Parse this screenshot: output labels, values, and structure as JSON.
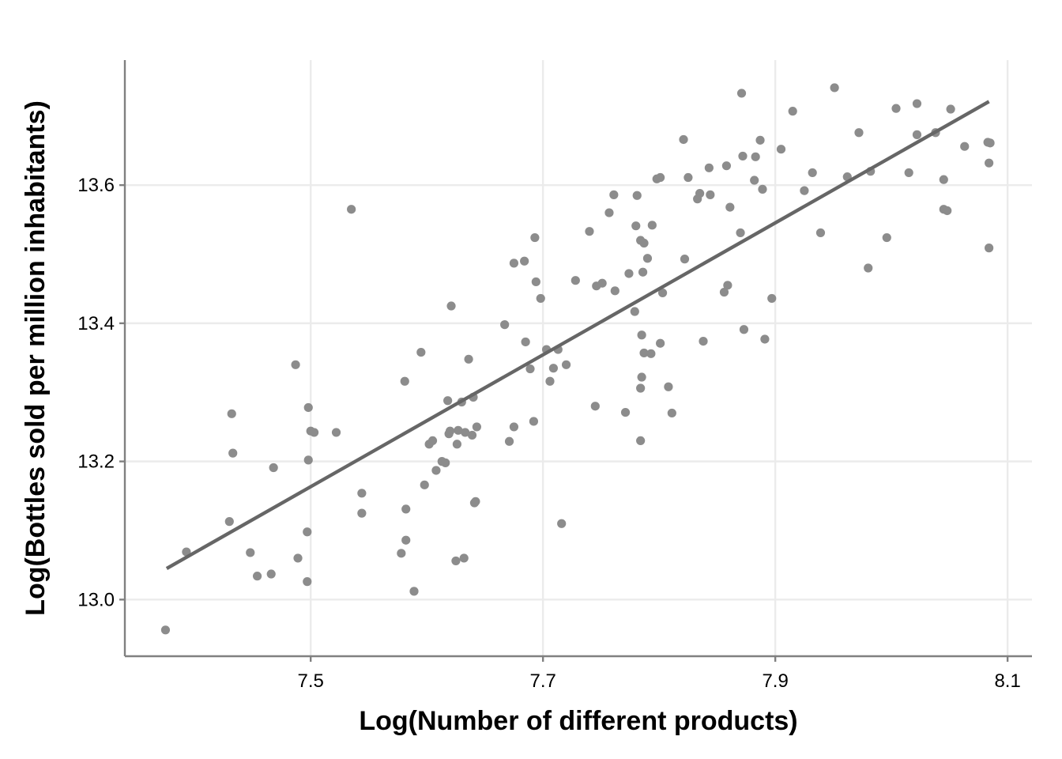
{
  "chart_data": {
    "type": "scatter",
    "title": "",
    "xlabel": "Log(Number of different products)",
    "ylabel": "Log(Bottles sold per million inhabitants)",
    "xlim": [
      7.34,
      8.121
    ],
    "ylim": [
      12.918,
      13.781
    ],
    "x_ticks": [
      7.5,
      7.7,
      7.9,
      8.1
    ],
    "x_tick_labels": [
      "7.5",
      "7.7",
      "7.9",
      "8.1"
    ],
    "y_ticks": [
      13.0,
      13.2,
      13.4,
      13.6
    ],
    "y_tick_labels": [
      "13.0",
      "13.2",
      "13.4",
      "13.6"
    ],
    "grid": true,
    "point_color": "#8c8c8c",
    "line_color": "#666666",
    "fit_line": {
      "x": [
        7.376,
        8.084
      ],
      "y": [
        13.045,
        13.721
      ]
    },
    "points": [
      [
        7.375,
        12.956
      ],
      [
        7.393,
        13.069
      ],
      [
        7.43,
        13.113
      ],
      [
        7.432,
        13.269
      ],
      [
        7.433,
        13.212
      ],
      [
        7.448,
        13.068
      ],
      [
        7.454,
        13.034
      ],
      [
        7.466,
        13.037
      ],
      [
        7.468,
        13.191
      ],
      [
        7.487,
        13.34
      ],
      [
        7.489,
        13.06
      ],
      [
        7.497,
        13.098
      ],
      [
        7.497,
        13.026
      ],
      [
        7.498,
        13.278
      ],
      [
        7.498,
        13.202
      ],
      [
        7.5,
        13.244
      ],
      [
        7.503,
        13.242
      ],
      [
        7.522,
        13.242
      ],
      [
        7.535,
        13.565
      ],
      [
        7.544,
        13.154
      ],
      [
        7.544,
        13.125
      ],
      [
        7.578,
        13.067
      ],
      [
        7.581,
        13.316
      ],
      [
        7.582,
        13.086
      ],
      [
        7.582,
        13.131
      ],
      [
        7.589,
        13.012
      ],
      [
        7.595,
        13.358
      ],
      [
        7.598,
        13.166
      ],
      [
        7.602,
        13.225
      ],
      [
        7.605,
        13.23
      ],
      [
        7.608,
        13.187
      ],
      [
        7.613,
        13.2
      ],
      [
        7.616,
        13.198
      ],
      [
        7.618,
        13.288
      ],
      [
        7.619,
        13.24
      ],
      [
        7.62,
        13.244
      ],
      [
        7.621,
        13.425
      ],
      [
        7.625,
        13.056
      ],
      [
        7.626,
        13.225
      ],
      [
        7.627,
        13.245
      ],
      [
        7.63,
        13.286
      ],
      [
        7.632,
        13.06
      ],
      [
        7.633,
        13.242
      ],
      [
        7.636,
        13.348
      ],
      [
        7.639,
        13.238
      ],
      [
        7.64,
        13.293
      ],
      [
        7.641,
        13.14
      ],
      [
        7.642,
        13.142
      ],
      [
        7.643,
        13.25
      ],
      [
        7.667,
        13.398
      ],
      [
        7.671,
        13.229
      ],
      [
        7.675,
        13.25
      ],
      [
        7.675,
        13.487
      ],
      [
        7.684,
        13.49
      ],
      [
        7.685,
        13.373
      ],
      [
        7.689,
        13.334
      ],
      [
        7.692,
        13.258
      ],
      [
        7.693,
        13.524
      ],
      [
        7.694,
        13.46
      ],
      [
        7.698,
        13.436
      ],
      [
        7.703,
        13.362
      ],
      [
        7.706,
        13.316
      ],
      [
        7.709,
        13.335
      ],
      [
        7.713,
        13.362
      ],
      [
        7.716,
        13.11
      ],
      [
        7.72,
        13.34
      ],
      [
        7.728,
        13.462
      ],
      [
        7.74,
        13.533
      ],
      [
        7.745,
        13.28
      ],
      [
        7.746,
        13.454
      ],
      [
        7.751,
        13.458
      ],
      [
        7.757,
        13.56
      ],
      [
        7.761,
        13.586
      ],
      [
        7.762,
        13.447
      ],
      [
        7.771,
        13.271
      ],
      [
        7.774,
        13.472
      ],
      [
        7.779,
        13.417
      ],
      [
        7.78,
        13.541
      ],
      [
        7.781,
        13.585
      ],
      [
        7.784,
        13.52
      ],
      [
        7.784,
        13.23
      ],
      [
        7.784,
        13.306
      ],
      [
        7.785,
        13.322
      ],
      [
        7.785,
        13.383
      ],
      [
        7.786,
        13.474
      ],
      [
        7.787,
        13.516
      ],
      [
        7.787,
        13.357
      ],
      [
        7.79,
        13.494
      ],
      [
        7.793,
        13.356
      ],
      [
        7.794,
        13.542
      ],
      [
        7.798,
        13.609
      ],
      [
        7.801,
        13.611
      ],
      [
        7.801,
        13.371
      ],
      [
        7.803,
        13.444
      ],
      [
        7.808,
        13.308
      ],
      [
        7.811,
        13.27
      ],
      [
        7.821,
        13.666
      ],
      [
        7.822,
        13.493
      ],
      [
        7.825,
        13.611
      ],
      [
        7.833,
        13.58
      ],
      [
        7.835,
        13.588
      ],
      [
        7.838,
        13.374
      ],
      [
        7.843,
        13.625
      ],
      [
        7.844,
        13.586
      ],
      [
        7.856,
        13.445
      ],
      [
        7.858,
        13.628
      ],
      [
        7.859,
        13.455
      ],
      [
        7.861,
        13.568
      ],
      [
        7.87,
        13.531
      ],
      [
        7.871,
        13.733
      ],
      [
        7.872,
        13.642
      ],
      [
        7.873,
        13.391
      ],
      [
        7.882,
        13.607
      ],
      [
        7.883,
        13.641
      ],
      [
        7.887,
        13.665
      ],
      [
        7.889,
        13.594
      ],
      [
        7.891,
        13.377
      ],
      [
        7.897,
        13.436
      ],
      [
        7.905,
        13.652
      ],
      [
        7.915,
        13.707
      ],
      [
        7.925,
        13.592
      ],
      [
        7.932,
        13.618
      ],
      [
        7.939,
        13.531
      ],
      [
        7.951,
        13.741
      ],
      [
        7.962,
        13.612
      ],
      [
        7.972,
        13.676
      ],
      [
        7.98,
        13.48
      ],
      [
        7.982,
        13.62
      ],
      [
        7.996,
        13.524
      ],
      [
        8.004,
        13.711
      ],
      [
        8.015,
        13.618
      ],
      [
        8.022,
        13.673
      ],
      [
        8.022,
        13.718
      ],
      [
        8.038,
        13.676
      ],
      [
        8.045,
        13.565
      ],
      [
        8.045,
        13.608
      ],
      [
        8.048,
        13.563
      ],
      [
        8.051,
        13.71
      ],
      [
        8.063,
        13.656
      ],
      [
        8.083,
        13.662
      ],
      [
        8.084,
        13.509
      ],
      [
        8.084,
        13.632
      ],
      [
        8.085,
        13.661
      ]
    ]
  }
}
